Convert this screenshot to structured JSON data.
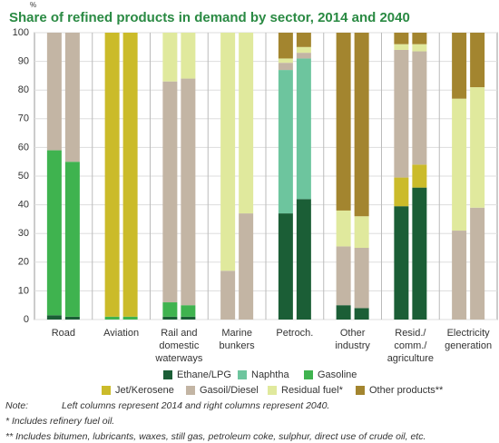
{
  "chart_data": {
    "type": "grouped-stacked-bar",
    "title": "Share of refined products in demand by sector, 2014 and 2040",
    "y_label": "%",
    "categories": [
      [
        "Road"
      ],
      [
        "Aviation"
      ],
      [
        "Rail and",
        "domestic",
        "waterways"
      ],
      [
        "Marine",
        "bunkers"
      ],
      [
        "Petroch."
      ],
      [
        "Other",
        "industry"
      ],
      [
        "Resid./",
        "comm./",
        "agriculture"
      ],
      [
        "Electricity",
        "generation"
      ]
    ],
    "series": [
      {
        "name": "Ethane/LPG",
        "color": "#1b5e36",
        "values": [
          [
            1.5,
            1
          ],
          [
            0,
            0
          ],
          [
            1,
            1
          ],
          [
            0,
            0
          ],
          [
            37,
            42
          ],
          [
            5,
            4
          ],
          [
            39.5,
            46
          ],
          [
            0,
            0
          ]
        ]
      },
      {
        "name": "Naphtha",
        "color": "#6dc59e",
        "values": [
          [
            0,
            0
          ],
          [
            0,
            0
          ],
          [
            0,
            0
          ],
          [
            0,
            0
          ],
          [
            50,
            49
          ],
          [
            0,
            0
          ],
          [
            0,
            0
          ],
          [
            0,
            0
          ]
        ]
      },
      {
        "name": "Gasoline",
        "color": "#3fb34f",
        "values": [
          [
            57.5,
            54
          ],
          [
            1,
            1
          ],
          [
            5,
            4
          ],
          [
            0,
            0
          ],
          [
            0,
            0
          ],
          [
            0,
            0
          ],
          [
            0,
            0
          ],
          [
            0,
            0
          ]
        ]
      },
      {
        "name": "Jet/Kerosene",
        "color": "#cbbb2a",
        "values": [
          [
            0,
            0
          ],
          [
            99,
            99
          ],
          [
            0,
            0
          ],
          [
            0,
            0
          ],
          [
            0,
            0
          ],
          [
            0,
            0
          ],
          [
            10,
            8
          ],
          [
            0,
            0
          ]
        ]
      },
      {
        "name": "Gasoil/Diesel",
        "color": "#c3b5a4",
        "values": [
          [
            41,
            45
          ],
          [
            0,
            0
          ],
          [
            77,
            79
          ],
          [
            17,
            37
          ],
          [
            2.5,
            2
          ],
          [
            20.5,
            21
          ],
          [
            44.5,
            39.5
          ],
          [
            31,
            39
          ]
        ]
      },
      {
        "name": "Residual fuel*",
        "color": "#e0e99d",
        "values": [
          [
            0,
            0
          ],
          [
            0,
            0
          ],
          [
            17,
            16
          ],
          [
            83,
            63
          ],
          [
            1.5,
            2
          ],
          [
            12.5,
            11
          ],
          [
            2,
            2.5
          ],
          [
            46,
            42
          ]
        ]
      },
      {
        "name": "Other products**",
        "color": "#a3852f",
        "values": [
          [
            0,
            0
          ],
          [
            0,
            0
          ],
          [
            0,
            0
          ],
          [
            0,
            0
          ],
          [
            9,
            5
          ],
          [
            62,
            64
          ],
          [
            4,
            4
          ],
          [
            23,
            19
          ]
        ]
      }
    ],
    "ylim": [
      0,
      100
    ],
    "yticks": [
      0,
      10,
      20,
      30,
      40,
      50,
      60,
      70,
      80,
      90,
      100
    ],
    "grid": true,
    "notes": {
      "label": "Note:",
      "text": "Left columns represent 2014 and right columns represent 2040.",
      "footnotes": [
        "*   Includes refinery fuel oil.",
        "**  Includes bitumen, lubricants, waxes, still gas, petroleum coke, sulphur, direct use of crude oil, etc."
      ]
    }
  }
}
